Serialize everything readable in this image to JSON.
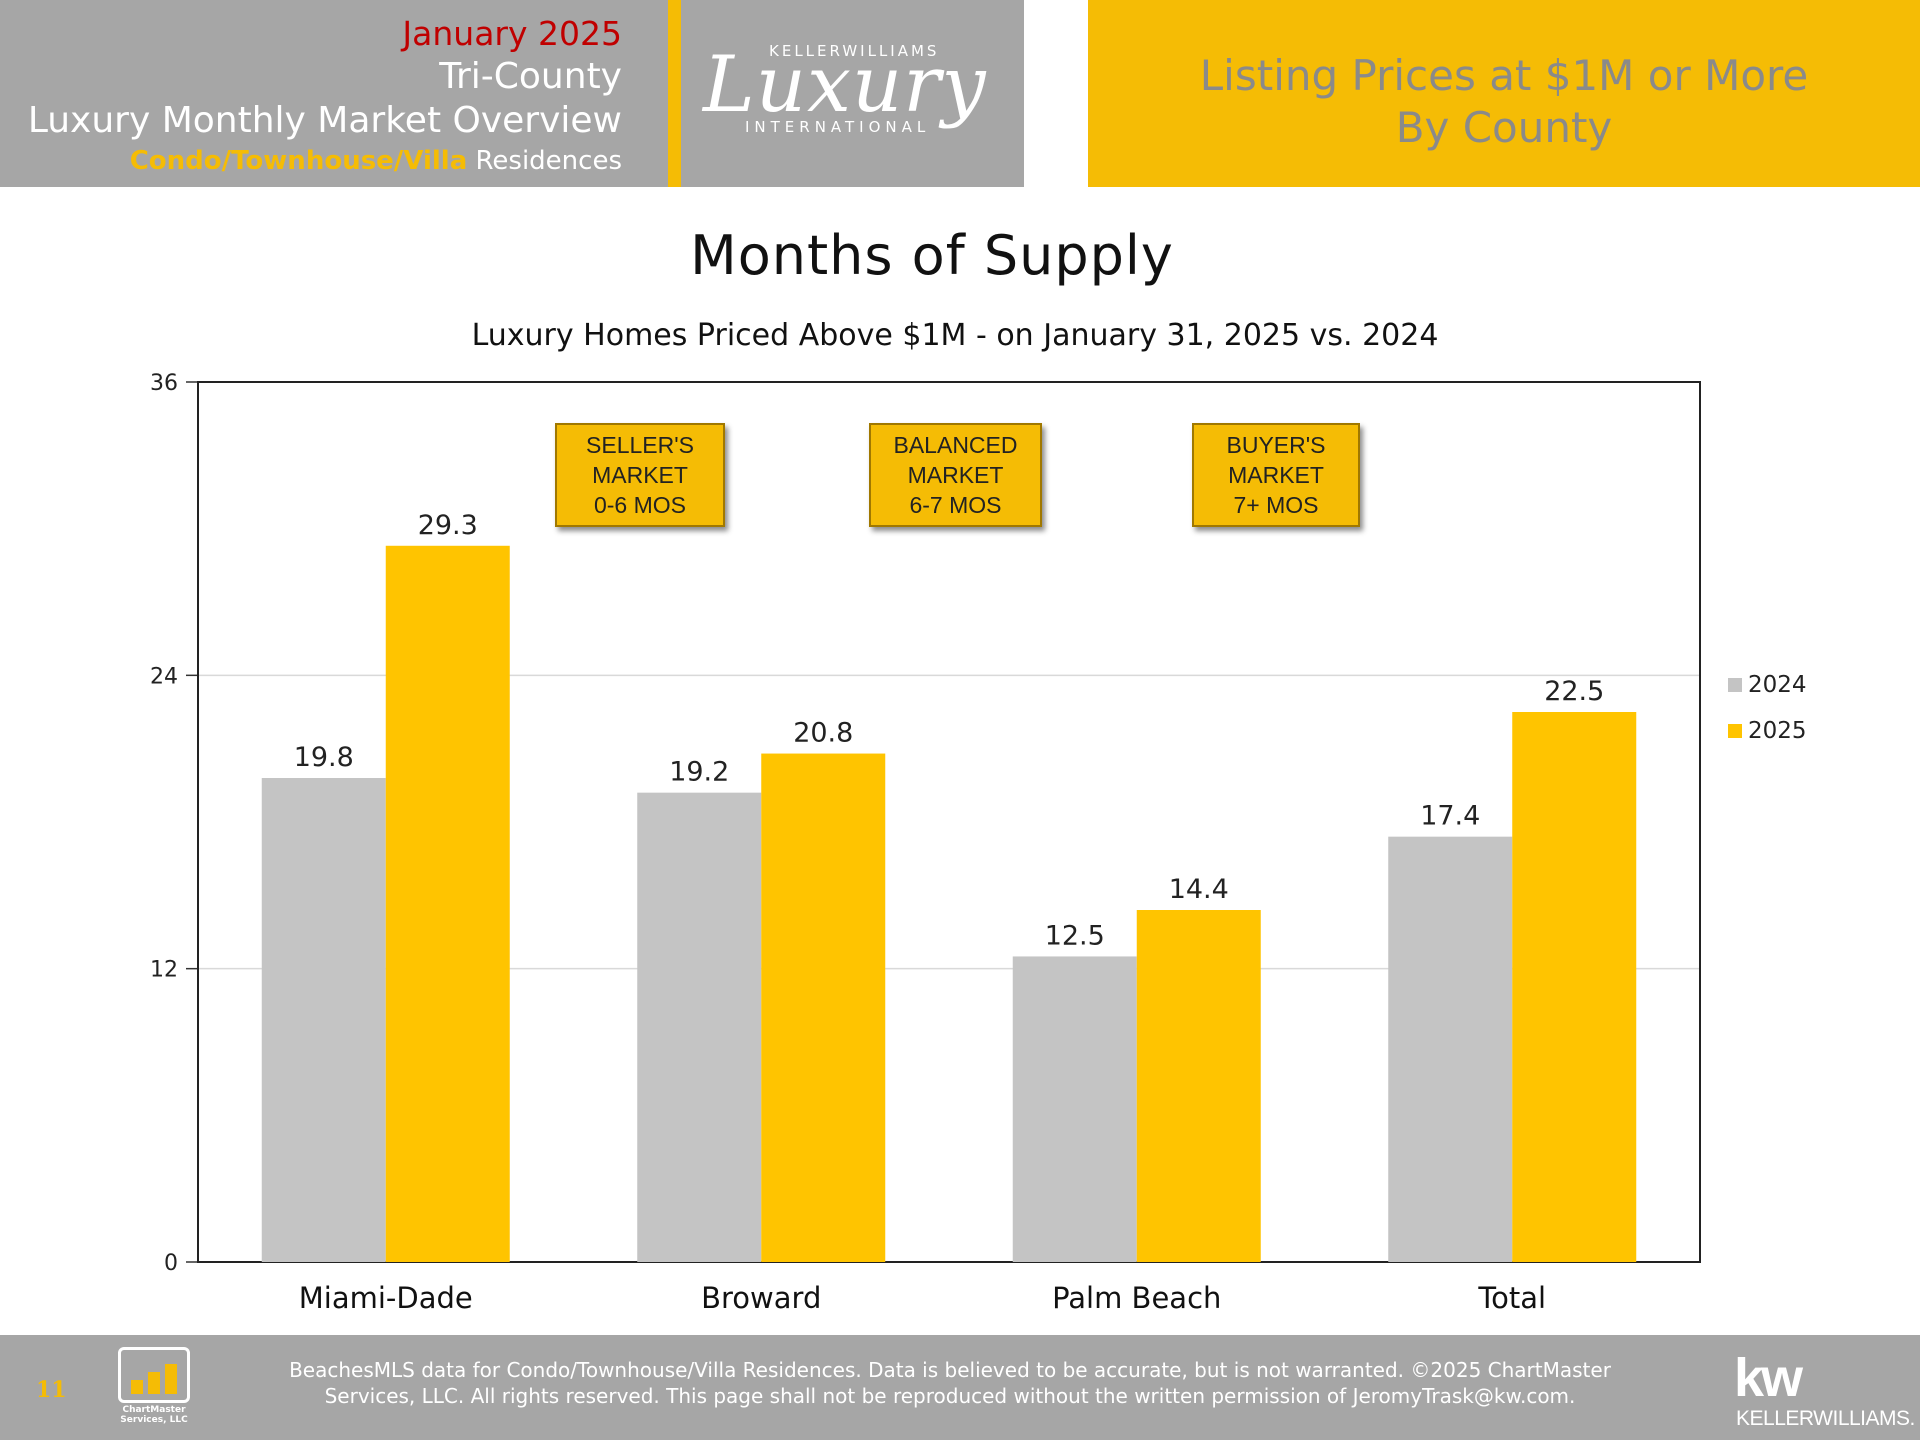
{
  "header": {
    "month": "January 2025",
    "area": "Tri-County",
    "title": "Luxury Monthly Market Overview",
    "subtitle_highlight": "Condo/Townhouse/Villa",
    "subtitle_rest": " Residences",
    "right_line1": "Listing Prices at $1M or More",
    "right_line2": "By County"
  },
  "logo": {
    "brand_top": "KELLERWILLIAMS",
    "brand_script": "Luxury",
    "brand_bottom": "INTERNATIONAL"
  },
  "callouts": [
    {
      "lines": [
        "SELLER'S",
        "MARKET",
        "0-6 MOS"
      ]
    },
    {
      "lines": [
        "BALANCED",
        "MARKET",
        "6-7 MOS"
      ]
    },
    {
      "lines": [
        "BUYER'S",
        "MARKET",
        "7+ MOS"
      ]
    }
  ],
  "colors": {
    "series_2024": "#c4c4c4",
    "series_2025": "#ffc400",
    "accent_gold": "#f5bc05",
    "header_gray": "#a6a6a6",
    "month_red": "#c00000"
  },
  "chart_data": {
    "type": "bar",
    "title": "Months of Supply",
    "subtitle": "Luxury Homes Priced Above $1M - on January 31,  2025 vs. 2024",
    "categories": [
      "Miami-Dade",
      "Broward",
      "Palm Beach",
      "Total"
    ],
    "series": [
      {
        "name": "2024",
        "values": [
          19.8,
          19.2,
          12.5,
          17.4
        ],
        "labels": [
          "19.8",
          "19.2",
          "12.5",
          "17.4"
        ]
      },
      {
        "name": "2025",
        "values": [
          29.3,
          20.8,
          14.4,
          22.5
        ],
        "labels": [
          "29.3",
          "20.8",
          "14.4",
          "22.5"
        ]
      }
    ],
    "ylim": [
      0,
      36
    ],
    "yticks": [
      0,
      12,
      24,
      36
    ],
    "ytick_labels": [
      "0",
      "12",
      "24",
      "36"
    ],
    "xlabel": "",
    "ylabel": "",
    "grid": true,
    "legend_position": "right"
  },
  "footer": {
    "page_number": "11",
    "chartmaster_line1": "ChartMaster",
    "chartmaster_line2": "Services, LLC",
    "disclaimer_line1": "BeachesMLS data for Condo/Townhouse/Villa Residences.  Data is believed to be accurate, but is not warranted.   ©2025  ChartMaster",
    "disclaimer_line2": "Services, LLC.  All rights reserved. This page shall not be reproduced without the written permission of JeromyTrask@kw.com.",
    "kw_mark": "kw",
    "kw_word": "KELLERWILLIAMS."
  }
}
